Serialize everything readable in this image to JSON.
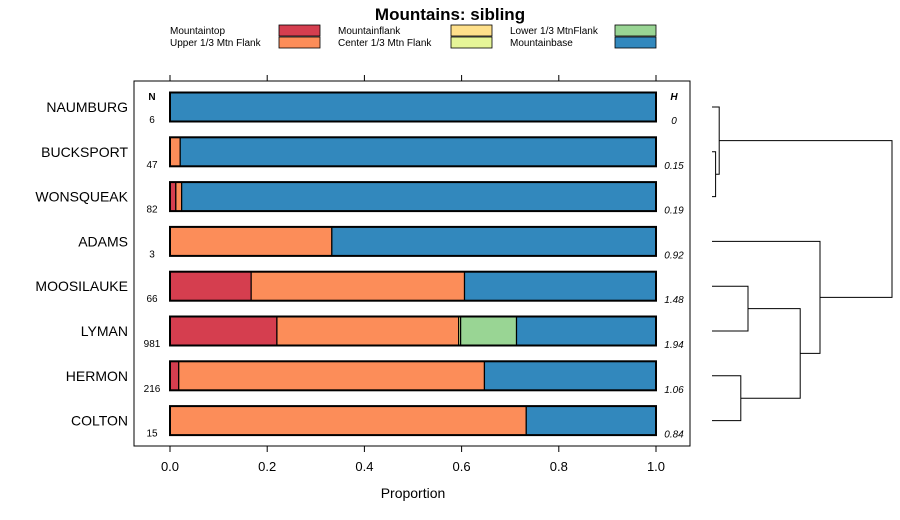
{
  "chart_data": {
    "type": "bar",
    "orientation": "horizontal",
    "stacked": true,
    "title": "Mountains: sibling",
    "xlabel": "Proportion",
    "ylabel": "",
    "xlim": [
      0,
      1
    ],
    "x_ticks": [
      "0.0",
      "0.2",
      "0.4",
      "0.6",
      "0.8",
      "1.0"
    ],
    "x_tick_values": [
      0,
      0.2,
      0.4,
      0.6,
      0.8,
      1.0
    ],
    "n_header": "N",
    "h_header": "H",
    "legend": [
      {
        "name": "Mountaintop",
        "color": "#d53e4f"
      },
      {
        "name": "Upper 1/3 Mtn Flank",
        "color": "#fc8d59"
      },
      {
        "name": "Mountainflank",
        "color": "#fee08b"
      },
      {
        "name": "Center 1/3 Mtn Flank",
        "color": "#e6f598"
      },
      {
        "name": "Lower 1/3 MtnFlank",
        "color": "#99d594"
      },
      {
        "name": "Mountainbase",
        "color": "#3288bd"
      }
    ],
    "categories": [
      "NAUMBURG",
      "BUCKSPORT",
      "WONSQUEAK",
      "ADAMS",
      "MOOSILAUKE",
      "LYMAN",
      "HERMON",
      "COLTON"
    ],
    "n": [
      "6",
      "47",
      "82",
      "3",
      "66",
      "981",
      "216",
      "15"
    ],
    "h": [
      "0",
      "0.15",
      "0.19",
      "0.92",
      "1.48",
      "1.94",
      "1.06",
      "0.84"
    ],
    "series": [
      {
        "name": "Mountaintop",
        "values": [
          0,
          0,
          0.012,
          0,
          0.167,
          0.22,
          0.018,
          0
        ]
      },
      {
        "name": "Upper 1/3 Mtn Flank",
        "values": [
          0,
          0.021,
          0.012,
          0.333,
          0.439,
          0.374,
          0.629,
          0.733
        ]
      },
      {
        "name": "Mountainflank",
        "values": [
          0,
          0,
          0,
          0,
          0,
          0,
          0,
          0
        ]
      },
      {
        "name": "Center 1/3 Mtn Flank",
        "values": [
          0,
          0,
          0,
          0,
          0,
          0.004,
          0,
          0
        ]
      },
      {
        "name": "Lower 1/3 MtnFlank",
        "values": [
          0,
          0,
          0,
          0,
          0,
          0.115,
          0,
          0
        ]
      },
      {
        "name": "Mountainbase",
        "values": [
          1,
          0.979,
          0.976,
          0.667,
          0.394,
          0.287,
          0.353,
          0.267
        ]
      }
    ],
    "dendrogram": {
      "merges": [
        {
          "a": "BUCKSPORT",
          "b": "WONSQUEAK",
          "height": 0.02
        },
        {
          "a": "NAUMBURG",
          "b": "BUCKSPORT+WONSQUEAK",
          "height": 0.04
        },
        {
          "a": "HERMON",
          "b": "COLTON",
          "height": 0.16
        },
        {
          "a": "MOOSILAUKE",
          "b": "LYMAN",
          "height": 0.2
        },
        {
          "a": "MOOSILAUKE+LYMAN",
          "b": "HERMON+COLTON",
          "height": 0.49
        },
        {
          "a": "ADAMS",
          "b": "MOOSILAUKE+LYMAN+HERMON+COLTON",
          "height": 0.6
        },
        {
          "a": "NAUMBURG+BUCKSPORT+WONSQUEAK",
          "b": "ADAMS+MOOSILAUKE+LYMAN+HERMON+COLTON",
          "height": 1.0
        }
      ]
    }
  }
}
